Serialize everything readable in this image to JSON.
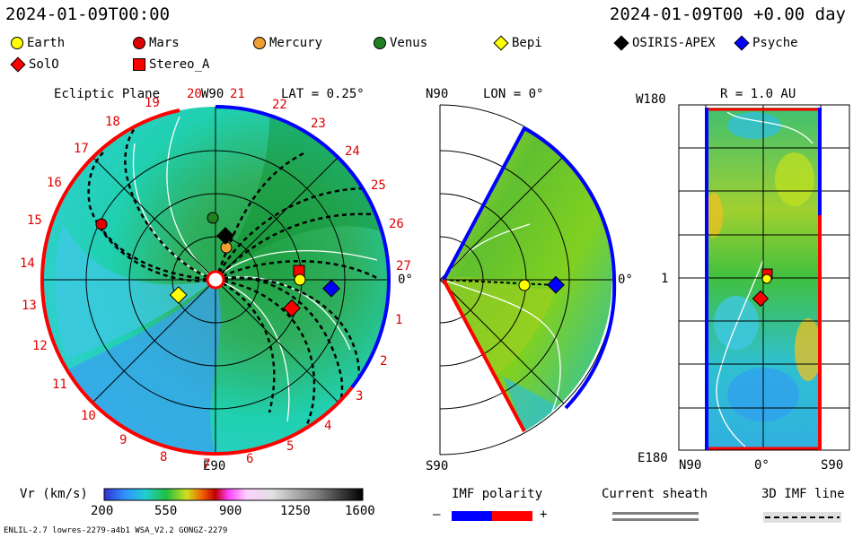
{
  "header": {
    "left_time": "2024-01-09T00:00",
    "right_time": "2024-01-09T00 +0.00 day"
  },
  "legend": [
    {
      "name": "Earth",
      "shape": "circle",
      "color": "#ffff00"
    },
    {
      "name": "Mars",
      "shape": "circle",
      "color": "#e00000"
    },
    {
      "name": "Mercury",
      "shape": "circle",
      "color": "#f0a030"
    },
    {
      "name": "Venus",
      "shape": "circle",
      "color": "#208020"
    },
    {
      "name": "Bepi",
      "shape": "diamond",
      "color": "#ffff00"
    },
    {
      "name": "OSIRIS-APEX",
      "shape": "diamond",
      "color": "#000000"
    },
    {
      "name": "Psyche",
      "shape": "diamond",
      "color": "#0000ff"
    },
    {
      "name": "SolO",
      "shape": "diamond",
      "color": "#ff0000"
    },
    {
      "name": "Stereo_A",
      "shape": "square",
      "color": "#ff0000"
    }
  ],
  "panels": {
    "ecliptic": {
      "title": "Ecliptic Plane",
      "top_label": "W90",
      "lat_label": "LAT = 0.25°",
      "bottom_label": "E90",
      "right_label": "0°",
      "carrington_labels": [
        "1",
        "2",
        "3",
        "4",
        "5",
        "6",
        "7",
        "8",
        "9",
        "10",
        "11",
        "12",
        "13",
        "14",
        "15",
        "16",
        "17",
        "18",
        "19",
        "20",
        "21",
        "22",
        "23",
        "24",
        "25",
        "26",
        "27"
      ]
    },
    "meridional": {
      "top_label": "N90",
      "lon_label": "LON = 0°",
      "bottom_label": "S90",
      "right_label": "0°"
    },
    "radial": {
      "title": "R = 1.0 AU",
      "top_left": "W180",
      "bottom_left": "E180",
      "mid_left": "1",
      "bottom_ticks": [
        "N90",
        "0°",
        "S90"
      ]
    }
  },
  "colorbar": {
    "label": "Vr (km/s)",
    "ticks": [
      "200",
      "550",
      "900",
      "1250",
      "1600"
    ]
  },
  "imf_polarity": {
    "label": "IMF polarity",
    "minus": "–",
    "plus": "+",
    "neg_color": "#0000ff",
    "pos_color": "#ff0000"
  },
  "current_sheath": {
    "label": "Current sheath"
  },
  "imf_line": {
    "label": "3D IMF line"
  },
  "footer": {
    "left": "ENLIL-2.7 lowres-2279-a4b1 WSA_V2.2 GONGZ-2279"
  },
  "chart_data": {
    "type": "heatmap",
    "title": "",
    "quantity": "Vr (km/s)",
    "color_range": [
      200,
      1600
    ],
    "time": "2024-01-09T00:00",
    "positions_ecliptic": [
      {
        "name": "Earth",
        "lon_deg": -10,
        "r_au": 1.0
      },
      {
        "name": "Mars",
        "lon_deg": 160,
        "r_au": 1.4
      },
      {
        "name": "Mercury",
        "lon_deg": 75,
        "r_au": 0.35
      },
      {
        "name": "Venus",
        "lon_deg": 95,
        "r_au": 0.7
      },
      {
        "name": "Bepi",
        "lon_deg": -165,
        "r_au": 0.45
      },
      {
        "name": "OSIRIS-APEX",
        "lon_deg": 80,
        "r_au": 0.5
      },
      {
        "name": "Psyche",
        "lon_deg": -12,
        "r_au": 1.3
      },
      {
        "name": "SolO",
        "lon_deg": -40,
        "r_au": 0.95
      },
      {
        "name": "Stereo_A",
        "lon_deg": -5,
        "r_au": 0.95
      }
    ]
  }
}
